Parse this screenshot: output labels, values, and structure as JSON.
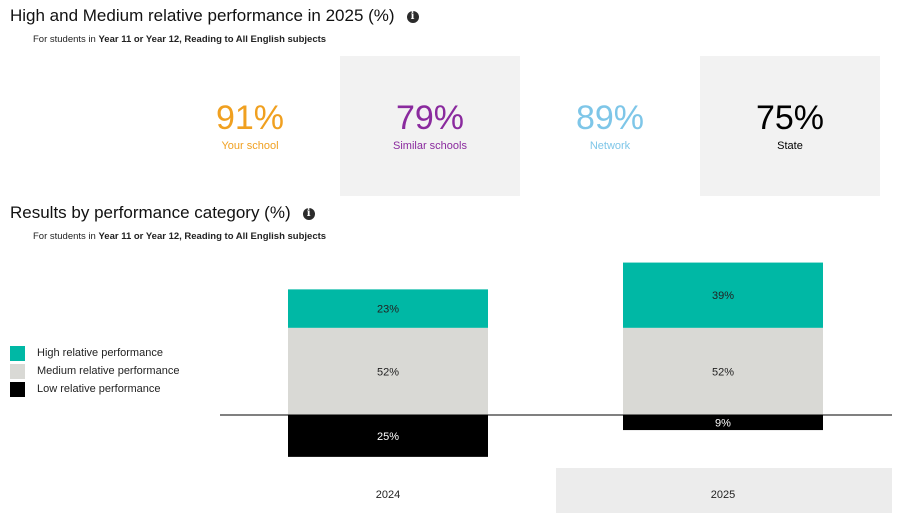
{
  "kpi_section": {
    "title": "High and Medium relative performance in 2025 (%)",
    "subtitle_prefix": "For students in ",
    "subtitle_bold": "Year 11 or Year 12, Reading to All English subjects",
    "cards": [
      {
        "value": "91%",
        "label": "Your school",
        "color": "#f0a020"
      },
      {
        "value": "79%",
        "label": "Similar schools",
        "color": "#8a2a9e"
      },
      {
        "value": "89%",
        "label": "Network",
        "color": "#7ec6e8"
      },
      {
        "value": "75%",
        "label": "State",
        "color": "#000000"
      }
    ]
  },
  "chart_section": {
    "title": "Results by performance category (%)",
    "subtitle_prefix": "For students in ",
    "subtitle_bold": "Year 11 or Year 12, Reading to All English subjects"
  },
  "info_icon_glyph": "i",
  "chart_data": {
    "type": "bar",
    "stacked": true,
    "diverging": true,
    "categories": [
      "2024",
      "2025"
    ],
    "series": [
      {
        "name": "High relative performance",
        "values": [
          23,
          39
        ],
        "color": "#00b8a5"
      },
      {
        "name": "Medium relative performance",
        "values": [
          52,
          52
        ],
        "color": "#d9d9d5"
      },
      {
        "name": "Low relative performance",
        "values": [
          25,
          9
        ],
        "color": "#000000"
      }
    ],
    "data_labels": {
      "2024": [
        "23%",
        "52%",
        "25%"
      ],
      "2025": [
        "39%",
        "52%",
        "9%"
      ]
    },
    "legend_placement": "left",
    "grid": false,
    "highlighted_category": "2025"
  }
}
